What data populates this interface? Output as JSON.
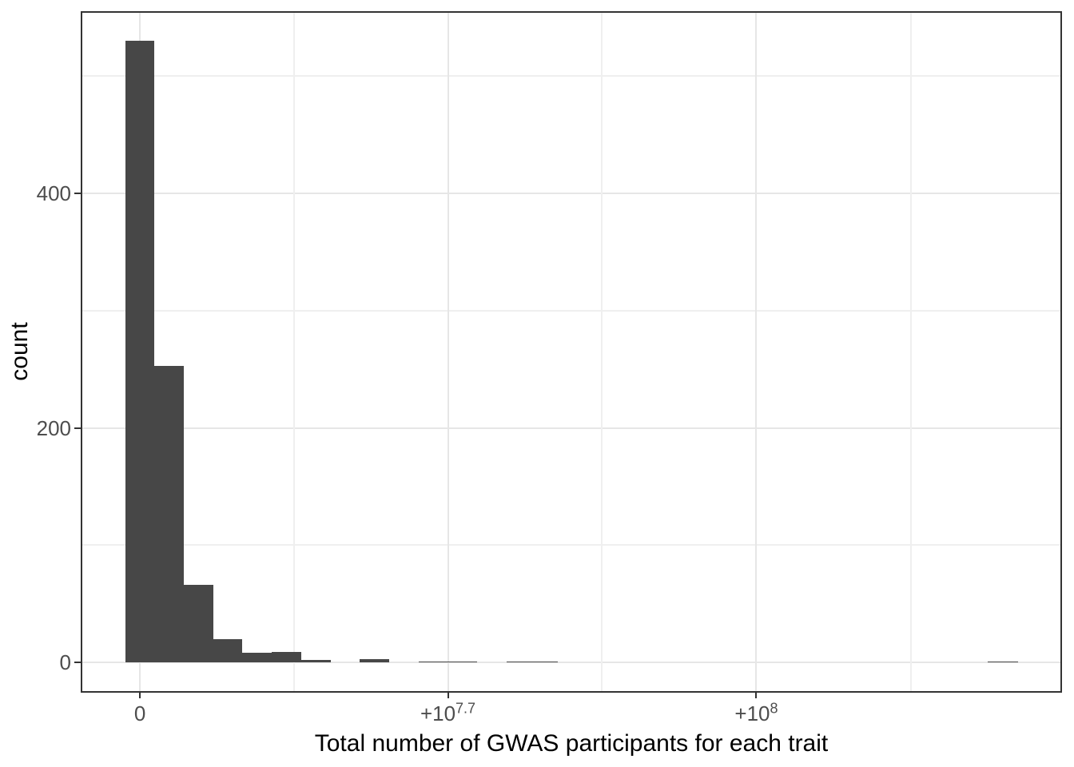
{
  "chart_data": {
    "type": "histogram",
    "title": "",
    "xlabel": "Total number of GWAS participants for each trait",
    "ylabel": "count",
    "legend": "none",
    "grid": "on",
    "panel_border": true,
    "bar_color": "#474747",
    "grid_major_color": "#e6e6e6",
    "grid_minor_color": "#efefef",
    "border_color": "#333333",
    "tick_color": "#333333",
    "tick_label_color": "#4d4d4d",
    "axis_title_color": "#000000",
    "y_axis": {
      "ticks": [
        {
          "label": "0",
          "count": 0
        },
        {
          "label": "200",
          "count": 200
        },
        {
          "label": "400",
          "count": 400
        }
      ],
      "minor_counts": [
        100,
        300,
        500
      ],
      "display_range": [
        -26,
        555
      ]
    },
    "x_axis": {
      "ticks": [
        {
          "base": "0",
          "sup": "",
          "frac": 0.0603
        },
        {
          "base": "+10",
          "sup": "7.7",
          "frac": 0.3742
        },
        {
          "base": "+10",
          "sup": "8",
          "frac": 0.6885
        }
      ],
      "minor_fracs": [
        0.2174,
        0.5313,
        0.8457
      ]
    },
    "bins": [
      {
        "f0": 0.0453,
        "f1": 0.0752,
        "count": 530
      },
      {
        "f0": 0.0752,
        "f1": 0.1051,
        "count": 253
      },
      {
        "f0": 0.1051,
        "f1": 0.135,
        "count": 66
      },
      {
        "f0": 0.135,
        "f1": 0.1648,
        "count": 20
      },
      {
        "f0": 0.1648,
        "f1": 0.1947,
        "count": 8
      },
      {
        "f0": 0.1947,
        "f1": 0.2246,
        "count": 9
      },
      {
        "f0": 0.2246,
        "f1": 0.2545,
        "count": 2
      },
      {
        "f0": 0.2844,
        "f1": 0.3143,
        "count": 3
      },
      {
        "f0": 0.3442,
        "f1": 0.374,
        "count": 1
      },
      {
        "f0": 0.374,
        "f1": 0.4039,
        "count": 1
      },
      {
        "f0": 0.4338,
        "f1": 0.4637,
        "count": 1
      },
      {
        "f0": 0.4637,
        "f1": 0.486,
        "count": 1
      },
      {
        "f0": 0.9243,
        "f1": 0.9552,
        "count": 1
      }
    ]
  }
}
